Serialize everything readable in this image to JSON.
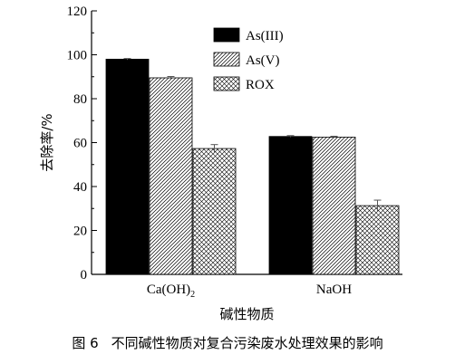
{
  "chart_data": {
    "type": "bar",
    "categories": [
      "Ca(OH)2",
      "NaOH"
    ],
    "category_labels": [
      {
        "main": "Ca(OH)",
        "sub": "2"
      },
      {
        "main": "NaOH",
        "sub": ""
      }
    ],
    "series": [
      {
        "name": "As(III)",
        "pattern": "solid",
        "values": [
          98.0,
          62.8
        ],
        "errors": [
          0.3,
          0.4
        ]
      },
      {
        "name": "As(V)",
        "pattern": "diagonal",
        "values": [
          89.5,
          62.5
        ],
        "errors": [
          0.6,
          0.4
        ]
      },
      {
        "name": "ROX",
        "pattern": "crosshatch",
        "values": [
          57.3,
          31.3
        ],
        "errors": [
          1.8,
          2.5
        ]
      }
    ],
    "xlabel": "碱性物质",
    "ylabel": "去除率/%",
    "ylim": [
      0,
      120
    ],
    "yticks": [
      "0",
      "20",
      "40",
      "60",
      "80",
      "100",
      "120"
    ],
    "grid": false,
    "legend_position": "top-right"
  },
  "caption": {
    "number": "图 6",
    "text": "不同碱性物质对复合污染废水处理效果的影响"
  }
}
